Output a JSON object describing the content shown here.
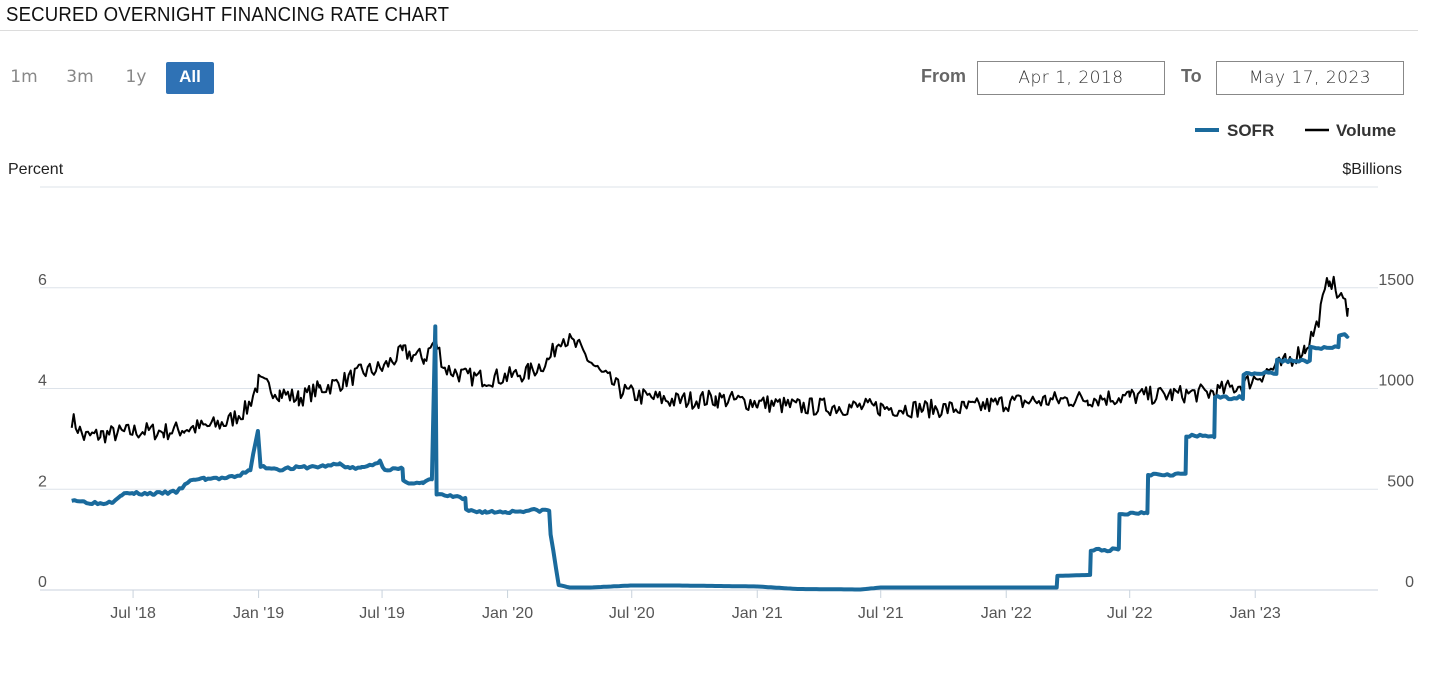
{
  "header": {
    "title": "SECURED OVERNIGHT FINANCING RATE CHART"
  },
  "range_selector": {
    "buttons": [
      {
        "label": "1m",
        "active": false
      },
      {
        "label": "3m",
        "active": false
      },
      {
        "label": "1y",
        "active": false
      },
      {
        "label": "All",
        "active": true
      }
    ],
    "from_label": "From",
    "from_value": "Apr 1, 2018",
    "to_label": "To",
    "to_value": "May 17, 2023"
  },
  "colors": {
    "sofr": "#1a6a9c",
    "volume": "#000000",
    "accent": "#2f72b5",
    "grid": "#dde3ea"
  },
  "chart_data": {
    "type": "line",
    "title": "SECURED OVERNIGHT FINANCING RATE CHART",
    "x_range": [
      "2018-04-01",
      "2023-05-17"
    ],
    "x_tick_labels": [
      "Jul '18",
      "Jan '19",
      "Jul '19",
      "Jan '20",
      "Jul '20",
      "Jan '21",
      "Jul '21",
      "Jan '22",
      "Jul '22",
      "Jan '23"
    ],
    "x_ticks": [
      "2018-07-01",
      "2019-01-01",
      "2019-07-01",
      "2020-01-01",
      "2020-07-01",
      "2021-01-01",
      "2021-07-01",
      "2022-01-01",
      "2022-07-01",
      "2023-01-01"
    ],
    "y_left": {
      "label": "Percent",
      "range": [
        0,
        8
      ],
      "ticks": [
        0,
        2,
        4,
        6
      ]
    },
    "y_right": {
      "label": "$Billions",
      "range": [
        0,
        2000
      ],
      "ticks": [
        0,
        500,
        1000,
        1500
      ]
    },
    "legend": [
      "SOFR",
      "Volume"
    ],
    "legend_position": "top-right",
    "grid": true,
    "series": [
      {
        "name": "SOFR",
        "axis": "left",
        "points": [
          [
            "2018-04-02",
            1.8
          ],
          [
            "2018-04-20",
            1.75
          ],
          [
            "2018-05-15",
            1.72
          ],
          [
            "2018-06-01",
            1.76
          ],
          [
            "2018-06-14",
            1.9
          ],
          [
            "2018-07-02",
            1.92
          ],
          [
            "2018-08-01",
            1.91
          ],
          [
            "2018-09-03",
            1.95
          ],
          [
            "2018-09-27",
            2.2
          ],
          [
            "2018-10-15",
            2.21
          ],
          [
            "2018-11-15",
            2.22
          ],
          [
            "2018-12-01",
            2.25
          ],
          [
            "2018-12-20",
            2.4
          ],
          [
            "2018-12-31",
            3.15
          ],
          [
            "2019-01-04",
            2.45
          ],
          [
            "2019-02-01",
            2.4
          ],
          [
            "2019-03-01",
            2.43
          ],
          [
            "2019-04-01",
            2.45
          ],
          [
            "2019-04-30",
            2.5
          ],
          [
            "2019-05-15",
            2.42
          ],
          [
            "2019-06-01",
            2.42
          ],
          [
            "2019-06-28",
            2.55
          ],
          [
            "2019-07-05",
            2.4
          ],
          [
            "2019-07-31",
            2.4
          ],
          [
            "2019-08-01",
            2.15
          ],
          [
            "2019-08-30",
            2.12
          ],
          [
            "2019-09-12",
            2.2
          ],
          [
            "2019-09-17",
            5.25
          ],
          [
            "2019-09-19",
            1.9
          ],
          [
            "2019-10-15",
            1.85
          ],
          [
            "2019-10-31",
            1.8
          ],
          [
            "2019-11-01",
            1.58
          ],
          [
            "2019-12-01",
            1.55
          ],
          [
            "2019-12-31",
            1.55
          ],
          [
            "2020-02-01",
            1.58
          ],
          [
            "2020-03-02",
            1.58
          ],
          [
            "2020-03-04",
            1.1
          ],
          [
            "2020-03-16",
            0.1
          ],
          [
            "2020-04-01",
            0.05
          ],
          [
            "2020-05-01",
            0.05
          ],
          [
            "2020-06-01",
            0.07
          ],
          [
            "2020-07-01",
            0.09
          ],
          [
            "2020-09-01",
            0.09
          ],
          [
            "2020-11-01",
            0.08
          ],
          [
            "2021-01-01",
            0.07
          ],
          [
            "2021-03-01",
            0.02
          ],
          [
            "2021-06-01",
            0.01
          ],
          [
            "2021-07-01",
            0.05
          ],
          [
            "2021-12-01",
            0.05
          ],
          [
            "2022-03-16",
            0.05
          ],
          [
            "2022-03-17",
            0.28
          ],
          [
            "2022-05-04",
            0.3
          ],
          [
            "2022-05-05",
            0.79
          ],
          [
            "2022-06-15",
            0.8
          ],
          [
            "2022-06-16",
            1.5
          ],
          [
            "2022-07-27",
            1.55
          ],
          [
            "2022-07-28",
            2.3
          ],
          [
            "2022-09-21",
            2.3
          ],
          [
            "2022-09-22",
            3.05
          ],
          [
            "2022-11-02",
            3.06
          ],
          [
            "2022-11-03",
            3.82
          ],
          [
            "2022-12-14",
            3.82
          ],
          [
            "2022-12-15",
            4.3
          ],
          [
            "2023-02-01",
            4.31
          ],
          [
            "2023-02-02",
            4.55
          ],
          [
            "2023-03-22",
            4.55
          ],
          [
            "2023-03-23",
            4.8
          ],
          [
            "2023-05-03",
            4.81
          ],
          [
            "2023-05-04",
            5.06
          ],
          [
            "2023-05-17",
            5.05
          ]
        ]
      },
      {
        "name": "Volume",
        "axis": "right",
        "points": [
          [
            "2018-04-02",
            850
          ],
          [
            "2018-04-20",
            760
          ],
          [
            "2018-05-15",
            770
          ],
          [
            "2018-06-15",
            780
          ],
          [
            "2018-07-15",
            790
          ],
          [
            "2018-08-15",
            785
          ],
          [
            "2018-09-15",
            800
          ],
          [
            "2018-10-15",
            810
          ],
          [
            "2018-11-15",
            830
          ],
          [
            "2018-12-15",
            900
          ],
          [
            "2019-01-01",
            1030
          ],
          [
            "2019-02-01",
            980
          ],
          [
            "2019-03-01",
            950
          ],
          [
            "2019-04-01",
            1000
          ],
          [
            "2019-05-01",
            1030
          ],
          [
            "2019-06-01",
            1080
          ],
          [
            "2019-07-01",
            1100
          ],
          [
            "2019-08-01",
            1180
          ],
          [
            "2019-09-01",
            1150
          ],
          [
            "2019-09-17",
            1240
          ],
          [
            "2019-10-01",
            1100
          ],
          [
            "2019-11-01",
            1060
          ],
          [
            "2019-12-01",
            1050
          ],
          [
            "2020-01-01",
            1060
          ],
          [
            "2020-02-01",
            1080
          ],
          [
            "2020-03-01",
            1140
          ],
          [
            "2020-03-20",
            1260
          ],
          [
            "2020-04-15",
            1200
          ],
          [
            "2020-05-15",
            1080
          ],
          [
            "2020-06-15",
            990
          ],
          [
            "2020-07-15",
            960
          ],
          [
            "2020-09-01",
            940
          ],
          [
            "2020-11-01",
            950
          ],
          [
            "2021-01-01",
            930
          ],
          [
            "2021-03-01",
            910
          ],
          [
            "2021-05-01",
            910
          ],
          [
            "2021-07-01",
            905
          ],
          [
            "2021-09-01",
            900
          ],
          [
            "2021-11-01",
            900
          ],
          [
            "2022-01-01",
            930
          ],
          [
            "2022-03-01",
            940
          ],
          [
            "2022-05-01",
            950
          ],
          [
            "2022-07-01",
            960
          ],
          [
            "2022-09-01",
            970
          ],
          [
            "2022-11-01",
            980
          ],
          [
            "2022-12-15",
            1020
          ],
          [
            "2023-01-15",
            1080
          ],
          [
            "2023-02-15",
            1130
          ],
          [
            "2023-03-15",
            1200
          ],
          [
            "2023-04-01",
            1310
          ],
          [
            "2023-04-20",
            1560
          ],
          [
            "2023-05-01",
            1470
          ],
          [
            "2023-05-17",
            1400
          ]
        ]
      }
    ]
  }
}
